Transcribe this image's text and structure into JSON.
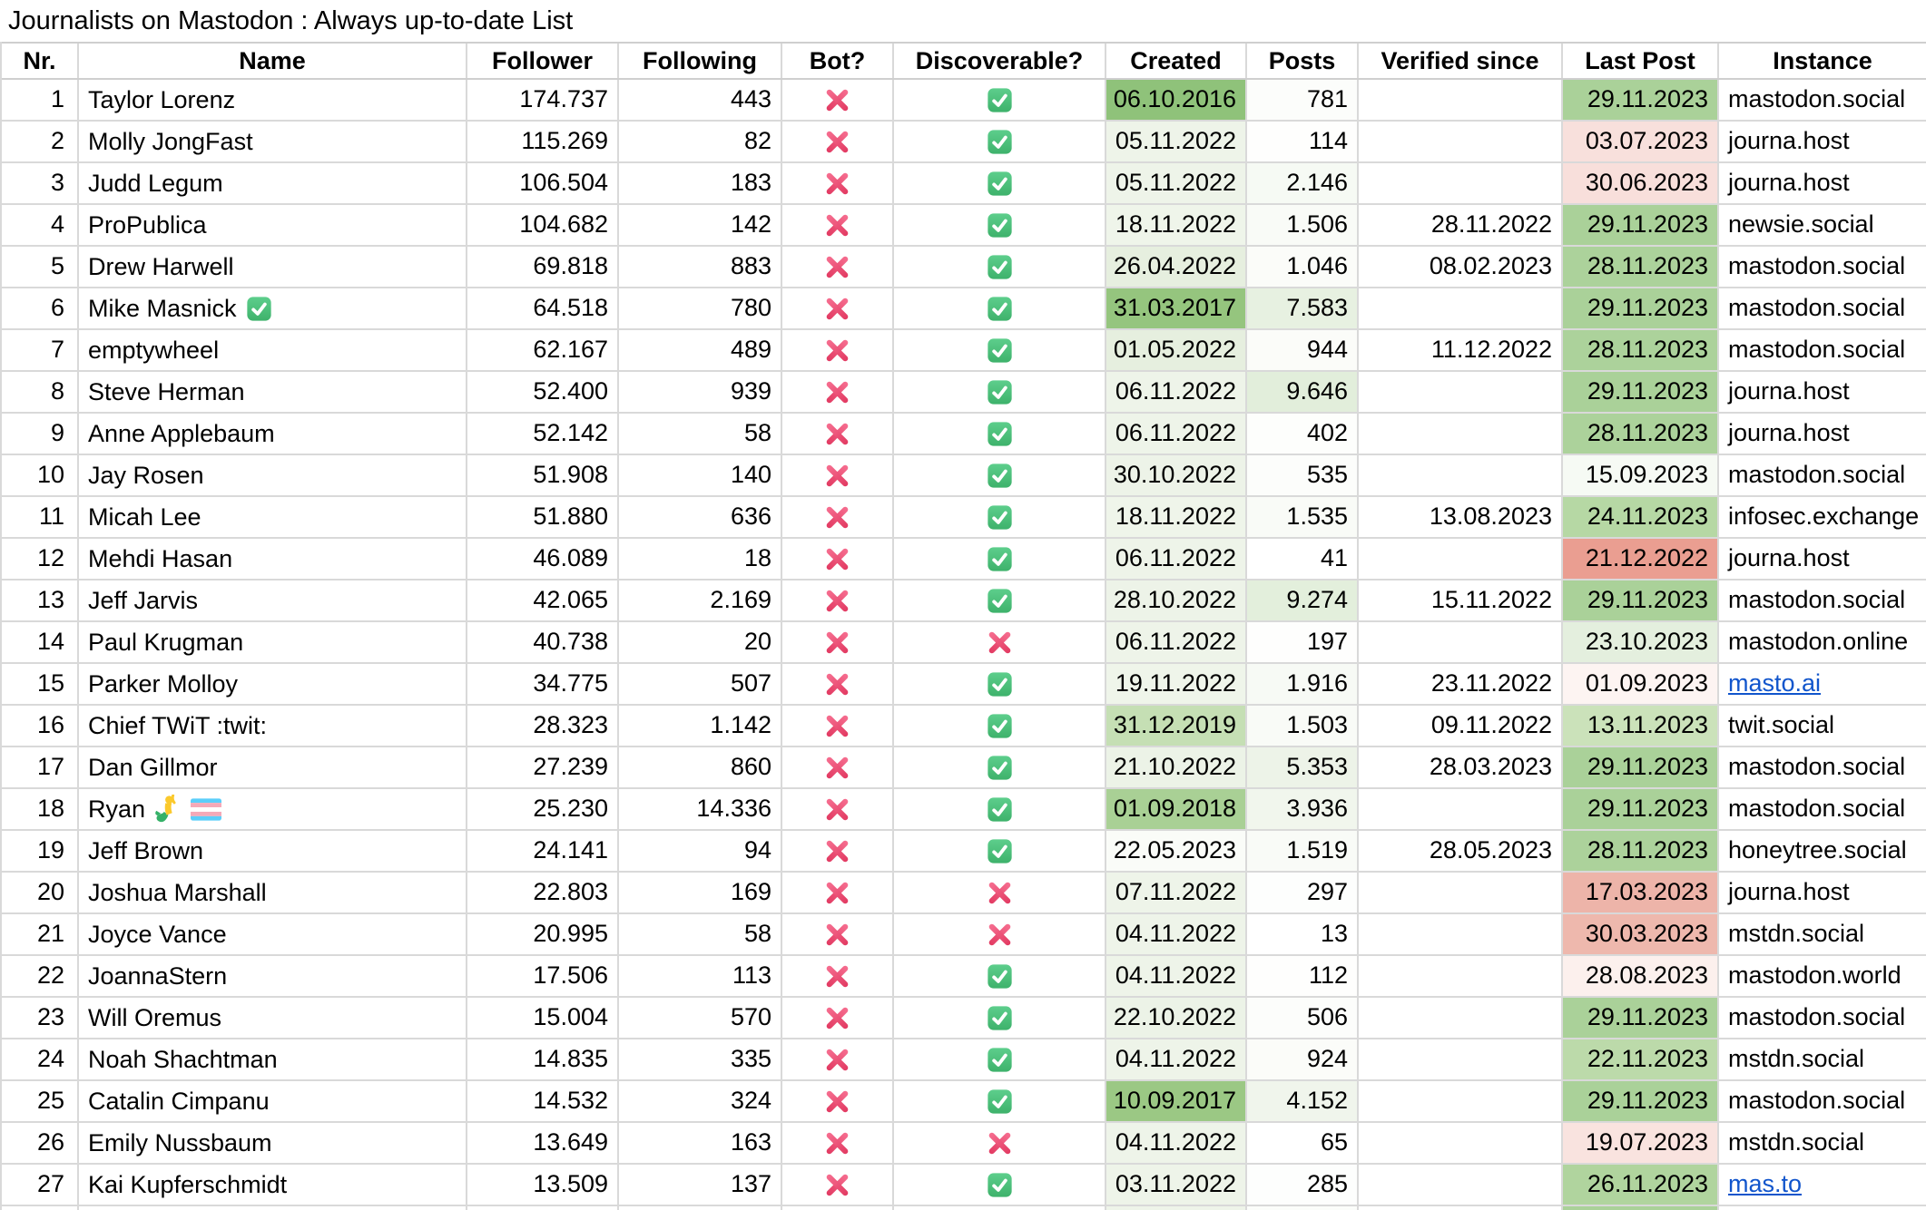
{
  "title": "Journalists on Mastodon : Always up-to-date List",
  "colors": {
    "link": "#1155cc",
    "grid_line": "#d9d9d9",
    "cross_top": "#f66e90",
    "cross_bottom": "#e23a62",
    "check_top": "#5dce8c",
    "check_bottom": "#3eb26b",
    "check_mark": "#ffffff",
    "scale_green_max": "#8fc27a",
    "scale_red_max": "#ea9e91",
    "trans_flag_blue": "#5bcefa",
    "trans_flag_pink": "#f5a9b8",
    "mermaid_yellow": "#fbc92c",
    "mermaid_green": "#35b168"
  },
  "table": {
    "columns": [
      {
        "id": "nr",
        "label": "Nr."
      },
      {
        "id": "name",
        "label": "Name"
      },
      {
        "id": "follower",
        "label": "Follower"
      },
      {
        "id": "following",
        "label": "Following"
      },
      {
        "id": "bot",
        "label": "Bot?"
      },
      {
        "id": "discoverable",
        "label": "Discoverable?"
      },
      {
        "id": "created",
        "label": "Created"
      },
      {
        "id": "posts",
        "label": "Posts"
      },
      {
        "id": "verified",
        "label": "Verified since"
      },
      {
        "id": "last_post",
        "label": "Last Post"
      },
      {
        "id": "instance",
        "label": "Instance"
      }
    ],
    "rows": [
      {
        "nr": "1",
        "name": "Taylor Lorenz",
        "badges": [],
        "follower": "174.737",
        "following": "443",
        "bot": "cross",
        "discoverable": "check",
        "created": "06.10.2016",
        "created_bg": "#8fc27a",
        "posts": "781",
        "posts_bg": "#fcfdfb",
        "verified": "",
        "last_post": "29.11.2023",
        "last_post_bg": "#aad199",
        "instance": "mastodon.social",
        "instance_is_link": false
      },
      {
        "nr": "2",
        "name": "Molly JongFast",
        "badges": [],
        "follower": "115.269",
        "following": "82",
        "bot": "cross",
        "discoverable": "check",
        "created": "05.11.2022",
        "created_bg": "#eef4e9",
        "posts": "114",
        "posts_bg": "#fefefd",
        "verified": "",
        "last_post": "03.07.2023",
        "last_post_bg": "#f8e0dc",
        "instance": "journa.host",
        "instance_is_link": false
      },
      {
        "nr": "3",
        "name": "Judd Legum",
        "badges": [],
        "follower": "106.504",
        "following": "183",
        "bot": "cross",
        "discoverable": "check",
        "created": "05.11.2022",
        "created_bg": "#eef4e9",
        "posts": "2.146",
        "posts_bg": "#f6faf4",
        "verified": "",
        "last_post": "30.06.2023",
        "last_post_bg": "#f8dfdb",
        "instance": "journa.host",
        "instance_is_link": false
      },
      {
        "nr": "4",
        "name": "ProPublica",
        "badges": [],
        "follower": "104.682",
        "following": "142",
        "bot": "cross",
        "discoverable": "check",
        "created": "18.11.2022",
        "created_bg": "#eff5ea",
        "posts": "1.506",
        "posts_bg": "#f9fbf7",
        "verified": "28.11.2022",
        "last_post": "29.11.2023",
        "last_post_bg": "#aad199",
        "instance": "newsie.social",
        "instance_is_link": false
      },
      {
        "nr": "5",
        "name": "Drew Harwell",
        "badges": [],
        "follower": "69.818",
        "following": "883",
        "bot": "cross",
        "discoverable": "check",
        "created": "26.04.2022",
        "created_bg": "#e6efdf",
        "posts": "1.046",
        "posts_bg": "#fbfcf9",
        "verified": "08.02.2023",
        "last_post": "28.11.2023",
        "last_post_bg": "#acd29b",
        "instance": "mastodon.social",
        "instance_is_link": false
      },
      {
        "nr": "6",
        "name": "Mike Masnick",
        "badges": [
          "check-icon"
        ],
        "follower": "64.518",
        "following": "780",
        "bot": "cross",
        "discoverable": "check",
        "created": "31.03.2017",
        "created_bg": "#95c57e",
        "posts": "7.583",
        "posts_bg": "#e7f1e1",
        "verified": "",
        "last_post": "29.11.2023",
        "last_post_bg": "#aad199",
        "instance": "mastodon.social",
        "instance_is_link": false
      },
      {
        "nr": "7",
        "name": "emptywheel",
        "badges": [],
        "follower": "62.167",
        "following": "489",
        "bot": "cross",
        "discoverable": "check",
        "created": "01.05.2022",
        "created_bg": "#e6efdf",
        "posts": "944",
        "posts_bg": "#fbfcf9",
        "verified": "11.12.2022",
        "last_post": "28.11.2023",
        "last_post_bg": "#acd29b",
        "instance": "mastodon.social",
        "instance_is_link": false
      },
      {
        "nr": "8",
        "name": "Steve Herman",
        "badges": [],
        "follower": "52.400",
        "following": "939",
        "bot": "cross",
        "discoverable": "check",
        "created": "06.11.2022",
        "created_bg": "#eef4e9",
        "posts": "9.646",
        "posts_bg": "#e2eedb",
        "verified": "",
        "last_post": "29.11.2023",
        "last_post_bg": "#aad199",
        "instance": "journa.host",
        "instance_is_link": false
      },
      {
        "nr": "9",
        "name": "Anne Applebaum",
        "badges": [],
        "follower": "52.142",
        "following": "58",
        "bot": "cross",
        "discoverable": "check",
        "created": "06.11.2022",
        "created_bg": "#eef4e9",
        "posts": "402",
        "posts_bg": "#fdfefc",
        "verified": "",
        "last_post": "28.11.2023",
        "last_post_bg": "#acd29b",
        "instance": "journa.host",
        "instance_is_link": false
      },
      {
        "nr": "10",
        "name": "Jay Rosen",
        "badges": [],
        "follower": "51.908",
        "following": "140",
        "bot": "cross",
        "discoverable": "check",
        "created": "30.10.2022",
        "created_bg": "#edf3e8",
        "posts": "535",
        "posts_bg": "#fcfdfb",
        "verified": "",
        "last_post": "15.09.2023",
        "last_post_bg": "#f6faf4",
        "instance": "mastodon.social",
        "instance_is_link": false
      },
      {
        "nr": "11",
        "name": "Micah Lee",
        "badges": [],
        "follower": "51.880",
        "following": "636",
        "bot": "cross",
        "discoverable": "check",
        "created": "18.11.2022",
        "created_bg": "#eff5ea",
        "posts": "1.535",
        "posts_bg": "#f9fbf7",
        "verified": "13.08.2023",
        "last_post": "24.11.2023",
        "last_post_bg": "#b6d8a4",
        "instance": "infosec.exchange",
        "instance_is_link": false
      },
      {
        "nr": "12",
        "name": "Mehdi Hasan",
        "badges": [],
        "follower": "46.089",
        "following": "18",
        "bot": "cross",
        "discoverable": "check",
        "created": "06.11.2022",
        "created_bg": "#eef4e9",
        "posts": "41",
        "posts_bg": "#ffffff",
        "verified": "",
        "last_post": "21.12.2022",
        "last_post_bg": "#ea9e91",
        "instance": "journa.host",
        "instance_is_link": false
      },
      {
        "nr": "13",
        "name": "Jeff Jarvis",
        "badges": [],
        "follower": "42.065",
        "following": "2.169",
        "bot": "cross",
        "discoverable": "check",
        "created": "28.10.2022",
        "created_bg": "#edf3e8",
        "posts": "9.274",
        "posts_bg": "#e3efdc",
        "verified": "15.11.2022",
        "last_post": "29.11.2023",
        "last_post_bg": "#aad199",
        "instance": "mastodon.social",
        "instance_is_link": false
      },
      {
        "nr": "14",
        "name": "Paul Krugman",
        "badges": [],
        "follower": "40.738",
        "following": "20",
        "bot": "cross",
        "discoverable": "cross",
        "created": "06.11.2022",
        "created_bg": "#eef4e9",
        "posts": "197",
        "posts_bg": "#fefefd",
        "verified": "",
        "last_post": "23.10.2023",
        "last_post_bg": "#e4efde",
        "instance": "mastodon.online",
        "instance_is_link": false
      },
      {
        "nr": "15",
        "name": "Parker Molloy",
        "badges": [],
        "follower": "34.775",
        "following": "507",
        "bot": "cross",
        "discoverable": "check",
        "created": "19.11.2022",
        "created_bg": "#eff5ea",
        "posts": "1.916",
        "posts_bg": "#f7faf5",
        "verified": "23.11.2022",
        "last_post": "01.09.2023",
        "last_post_bg": "#fdf4f2",
        "instance": "masto.ai",
        "instance_is_link": true
      },
      {
        "nr": "16",
        "name": "Chief TWiT :twit:",
        "badges": [],
        "follower": "28.323",
        "following": "1.142",
        "bot": "cross",
        "discoverable": "check",
        "created": "31.12.2019",
        "created_bg": "#c5dfb4",
        "posts": "1.503",
        "posts_bg": "#f9fbf7",
        "verified": "09.11.2022",
        "last_post": "13.11.2023",
        "last_post_bg": "#cbe2ba",
        "instance": "twit.social",
        "instance_is_link": false
      },
      {
        "nr": "17",
        "name": "Dan Gillmor",
        "badges": [],
        "follower": "27.239",
        "following": "860",
        "bot": "cross",
        "discoverable": "check",
        "created": "21.10.2022",
        "created_bg": "#ecf3e7",
        "posts": "5.353",
        "posts_bg": "#edf3e8",
        "verified": "28.03.2023",
        "last_post": "29.11.2023",
        "last_post_bg": "#aad199",
        "instance": "mastodon.social",
        "instance_is_link": false
      },
      {
        "nr": "18",
        "name": "Ryan",
        "badges": [
          "mermaid-icon",
          "trans-flag-icon"
        ],
        "follower": "25.230",
        "following": "14.336",
        "bot": "cross",
        "discoverable": "check",
        "created": "01.09.2018",
        "created_bg": "#a9d095",
        "posts": "3.936",
        "posts_bg": "#f1f6ed",
        "verified": "",
        "last_post": "29.11.2023",
        "last_post_bg": "#aad199",
        "instance": "mastodon.social",
        "instance_is_link": false
      },
      {
        "nr": "19",
        "name": "Jeff Brown",
        "badges": [],
        "follower": "24.141",
        "following": "94",
        "bot": "cross",
        "discoverable": "check",
        "created": "22.05.2023",
        "created_bg": "#fafcf8",
        "posts": "1.519",
        "posts_bg": "#f9fbf7",
        "verified": "28.05.2023",
        "last_post": "28.11.2023",
        "last_post_bg": "#acd29b",
        "instance": "honeytree.social",
        "instance_is_link": false
      },
      {
        "nr": "20",
        "name": "Joshua Marshall",
        "badges": [],
        "follower": "22.803",
        "following": "169",
        "bot": "cross",
        "discoverable": "cross",
        "created": "07.11.2022",
        "created_bg": "#eef4e9",
        "posts": "297",
        "posts_bg": "#fdfefd",
        "verified": "",
        "last_post": "17.03.2023",
        "last_post_bg": "#edb4a9",
        "instance": "journa.host",
        "instance_is_link": false
      },
      {
        "nr": "21",
        "name": "Joyce Vance",
        "badges": [],
        "follower": "20.995",
        "following": "58",
        "bot": "cross",
        "discoverable": "cross",
        "created": "04.11.2022",
        "created_bg": "#eef4e9",
        "posts": "13",
        "posts_bg": "#ffffff",
        "verified": "",
        "last_post": "30.03.2023",
        "last_post_bg": "#eeb8ad",
        "instance": "mstdn.social",
        "instance_is_link": false
      },
      {
        "nr": "22",
        "name": "JoannaStern",
        "badges": [],
        "follower": "17.506",
        "following": "113",
        "bot": "cross",
        "discoverable": "check",
        "created": "04.11.2022",
        "created_bg": "#eef4e9",
        "posts": "112",
        "posts_bg": "#fefefd",
        "verified": "",
        "last_post": "28.08.2023",
        "last_post_bg": "#fcf0ed",
        "instance": "mastodon.world",
        "instance_is_link": false
      },
      {
        "nr": "23",
        "name": "Will Oremus",
        "badges": [],
        "follower": "15.004",
        "following": "570",
        "bot": "cross",
        "discoverable": "check",
        "created": "22.10.2022",
        "created_bg": "#ecf3e7",
        "posts": "506",
        "posts_bg": "#fcfdfb",
        "verified": "",
        "last_post": "29.11.2023",
        "last_post_bg": "#aad199",
        "instance": "mastodon.social",
        "instance_is_link": false
      },
      {
        "nr": "24",
        "name": "Noah Shachtman",
        "badges": [],
        "follower": "14.835",
        "following": "335",
        "bot": "cross",
        "discoverable": "check",
        "created": "04.11.2022",
        "created_bg": "#eef4e9",
        "posts": "924",
        "posts_bg": "#fbfcf9",
        "verified": "",
        "last_post": "22.11.2023",
        "last_post_bg": "#bcdaaa",
        "instance": "mstdn.social",
        "instance_is_link": false
      },
      {
        "nr": "25",
        "name": "Catalin Cimpanu",
        "badges": [],
        "follower": "14.532",
        "following": "324",
        "bot": "cross",
        "discoverable": "check",
        "created": "10.09.2017",
        "created_bg": "#9bc884",
        "posts": "4.152",
        "posts_bg": "#f0f5ec",
        "verified": "",
        "last_post": "29.11.2023",
        "last_post_bg": "#aad199",
        "instance": "mastodon.social",
        "instance_is_link": false
      },
      {
        "nr": "26",
        "name": "Emily Nussbaum",
        "badges": [],
        "follower": "13.649",
        "following": "163",
        "bot": "cross",
        "discoverable": "cross",
        "created": "04.11.2022",
        "created_bg": "#eef4e9",
        "posts": "65",
        "posts_bg": "#ffffff",
        "verified": "",
        "last_post": "19.07.2023",
        "last_post_bg": "#f9e3df",
        "instance": "mstdn.social",
        "instance_is_link": false
      },
      {
        "nr": "27",
        "name": "Kai Kupferschmidt",
        "badges": [],
        "follower": "13.509",
        "following": "137",
        "bot": "cross",
        "discoverable": "check",
        "created": "03.11.2022",
        "created_bg": "#eef4e9",
        "posts": "285",
        "posts_bg": "#fdfefd",
        "verified": "",
        "last_post": "26.11.2023",
        "last_post_bg": "#b0d49e",
        "instance": "mas.to",
        "instance_is_link": true
      }
    ],
    "partial_row": {
      "created_bg": "#eef4e9",
      "posts_bg": "#fbfdfa",
      "last_post_bg": "#aad199"
    }
  }
}
